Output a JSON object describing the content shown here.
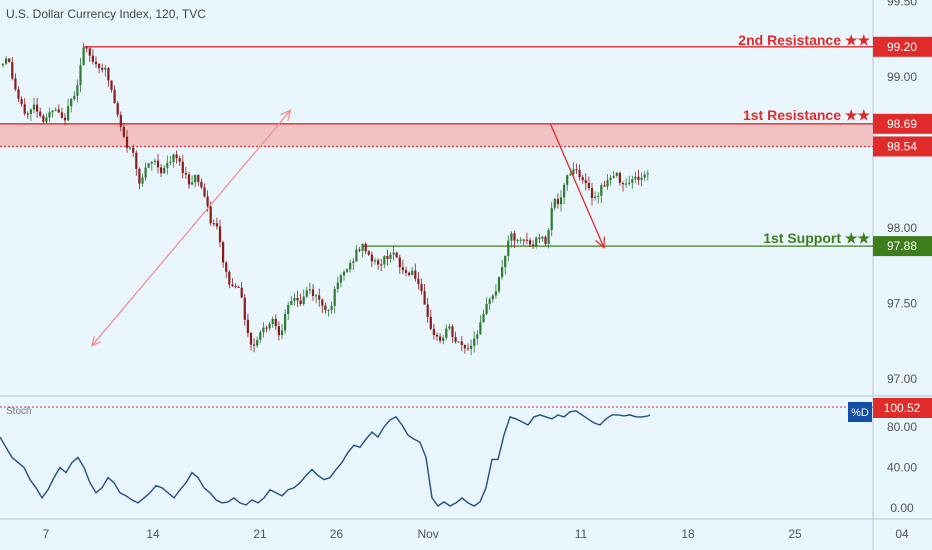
{
  "header": {
    "symbol_title": "U.S. Dollar Currency Index, 120, TVC"
  },
  "colors": {
    "background": "#eaf6fd",
    "candle_up": "#2d7a30",
    "candle_down": "#8b1c1c",
    "resistance": "#e02b2b",
    "resistance_zone": "#f2b8b8",
    "support": "#3d7d1c",
    "stoch_line": "#1e4f8a",
    "axis_text": "#555555",
    "stoch_badge": "#1450a8"
  },
  "levels": {
    "second_resistance": {
      "label": "2nd Resistance ★★",
      "price": 99.2,
      "price_text": "99.20"
    },
    "first_resistance": {
      "label": "1st Resistance ★★",
      "price": 98.69,
      "price_text": "98.69"
    },
    "zone_lower": {
      "price": 98.54,
      "price_text": "98.54"
    },
    "first_support": {
      "label": "1st Support ★★",
      "price": 97.88,
      "price_text": "97.88"
    }
  },
  "stoch": {
    "title": "Stoch",
    "badge": "%D",
    "upper_level_text": "100.52"
  },
  "chart_data": [
    {
      "type": "candlestick",
      "x_tick_labels": [
        "7",
        "14",
        "21",
        "26",
        "Nov",
        "11",
        "18",
        "25",
        "04"
      ],
      "y_tick_labels": [
        "99.50",
        "99.00",
        "98.00",
        "97.50",
        "97.00"
      ],
      "ylim": [
        96.91,
        99.55
      ],
      "close_path": [
        [
          0,
          99.05
        ],
        [
          7,
          99.15
        ],
        [
          14,
          98.95
        ],
        [
          21,
          98.8
        ],
        [
          28,
          98.75
        ],
        [
          35,
          98.82
        ],
        [
          42,
          98.72
        ],
        [
          49,
          98.75
        ],
        [
          56,
          98.78
        ],
        [
          63,
          98.7
        ],
        [
          70,
          98.82
        ],
        [
          77,
          98.95
        ],
        [
          84,
          99.2
        ],
        [
          91,
          99.12
        ],
        [
          98,
          99.08
        ],
        [
          105,
          99.05
        ],
        [
          112,
          98.9
        ],
        [
          119,
          98.7
        ],
        [
          126,
          98.55
        ],
        [
          133,
          98.5
        ],
        [
          140,
          98.3
        ],
        [
          147,
          98.4
        ],
        [
          154,
          98.45
        ],
        [
          161,
          98.38
        ],
        [
          168,
          98.42
        ],
        [
          175,
          98.48
        ],
        [
          182,
          98.4
        ],
        [
          189,
          98.3
        ],
        [
          196,
          98.35
        ],
        [
          203,
          98.25
        ],
        [
          210,
          98.05
        ],
        [
          217,
          98.0
        ],
        [
          224,
          97.75
        ],
        [
          231,
          97.6
        ],
        [
          238,
          97.65
        ],
        [
          245,
          97.4
        ],
        [
          252,
          97.2
        ],
        [
          259,
          97.3
        ],
        [
          266,
          97.35
        ],
        [
          273,
          97.4
        ],
        [
          280,
          97.3
        ],
        [
          287,
          97.45
        ],
        [
          294,
          97.55
        ],
        [
          301,
          97.5
        ],
        [
          308,
          97.6
        ],
        [
          315,
          97.55
        ],
        [
          322,
          97.5
        ],
        [
          329,
          97.45
        ],
        [
          336,
          97.6
        ],
        [
          343,
          97.7
        ],
        [
          350,
          97.75
        ],
        [
          357,
          97.85
        ],
        [
          364,
          97.88
        ],
        [
          371,
          97.8
        ],
        [
          378,
          97.75
        ],
        [
          385,
          97.8
        ],
        [
          392,
          97.85
        ],
        [
          399,
          97.75
        ],
        [
          406,
          97.7
        ],
        [
          413,
          97.72
        ],
        [
          420,
          97.6
        ],
        [
          427,
          97.4
        ],
        [
          434,
          97.3
        ],
        [
          441,
          97.25
        ],
        [
          448,
          97.35
        ],
        [
          455,
          97.25
        ],
        [
          462,
          97.22
        ],
        [
          469,
          97.2
        ],
        [
          476,
          97.3
        ],
        [
          483,
          97.4
        ],
        [
          490,
          97.55
        ],
        [
          497,
          97.6
        ],
        [
          504,
          97.8
        ],
        [
          511,
          97.95
        ],
        [
          518,
          97.9
        ],
        [
          525,
          97.92
        ],
        [
          532,
          97.88
        ],
        [
          539,
          97.95
        ],
        [
          546,
          97.9
        ],
        [
          553,
          98.2
        ],
        [
          560,
          98.15
        ],
        [
          567,
          98.35
        ],
        [
          574,
          98.4
        ],
        [
          581,
          98.35
        ],
        [
          588,
          98.25
        ],
        [
          595,
          98.2
        ],
        [
          602,
          98.28
        ],
        [
          609,
          98.32
        ],
        [
          616,
          98.35
        ],
        [
          623,
          98.3
        ],
        [
          630,
          98.32
        ],
        [
          637,
          98.33
        ],
        [
          644,
          98.34
        ],
        [
          650,
          98.37
        ]
      ],
      "annotations": [
        {
          "type": "arrow",
          "from": [
            10,
            97.22
          ],
          "to": [
            23,
            98.78
          ]
        },
        {
          "type": "arrow",
          "from": [
            40,
            98.69
          ],
          "to": [
            43.5,
            97.87
          ]
        }
      ]
    },
    {
      "type": "line",
      "name": "%D",
      "y_tick_labels": [
        "80.00",
        "40.00",
        "0.00"
      ],
      "ylim": [
        -8,
        110
      ],
      "points": [
        [
          0,
          70
        ],
        [
          6,
          60
        ],
        [
          12,
          50
        ],
        [
          18,
          45
        ],
        [
          24,
          40
        ],
        [
          30,
          28
        ],
        [
          36,
          20
        ],
        [
          42,
          10
        ],
        [
          48,
          18
        ],
        [
          54,
          30
        ],
        [
          60,
          40
        ],
        [
          66,
          35
        ],
        [
          72,
          45
        ],
        [
          78,
          50
        ],
        [
          84,
          40
        ],
        [
          90,
          25
        ],
        [
          96,
          15
        ],
        [
          102,
          20
        ],
        [
          108,
          30
        ],
        [
          114,
          25
        ],
        [
          120,
          15
        ],
        [
          126,
          12
        ],
        [
          132,
          8
        ],
        [
          138,
          5
        ],
        [
          144,
          10
        ],
        [
          150,
          15
        ],
        [
          156,
          22
        ],
        [
          162,
          20
        ],
        [
          168,
          15
        ],
        [
          174,
          10
        ],
        [
          180,
          18
        ],
        [
          186,
          25
        ],
        [
          192,
          35
        ],
        [
          198,
          30
        ],
        [
          204,
          20
        ],
        [
          210,
          15
        ],
        [
          216,
          8
        ],
        [
          222,
          5
        ],
        [
          228,
          6
        ],
        [
          234,
          10
        ],
        [
          240,
          5
        ],
        [
          246,
          3
        ],
        [
          252,
          8
        ],
        [
          258,
          5
        ],
        [
          264,
          10
        ],
        [
          270,
          18
        ],
        [
          276,
          15
        ],
        [
          282,
          12
        ],
        [
          288,
          18
        ],
        [
          294,
          20
        ],
        [
          300,
          25
        ],
        [
          306,
          32
        ],
        [
          312,
          38
        ],
        [
          318,
          32
        ],
        [
          324,
          28
        ],
        [
          330,
          30
        ],
        [
          336,
          38
        ],
        [
          342,
          45
        ],
        [
          348,
          55
        ],
        [
          354,
          62
        ],
        [
          360,
          60
        ],
        [
          366,
          68
        ],
        [
          372,
          75
        ],
        [
          378,
          70
        ],
        [
          384,
          80
        ],
        [
          390,
          87
        ],
        [
          396,
          90
        ],
        [
          402,
          82
        ],
        [
          408,
          72
        ],
        [
          414,
          68
        ],
        [
          420,
          65
        ],
        [
          426,
          50
        ],
        [
          432,
          10
        ],
        [
          438,
          2
        ],
        [
          444,
          6
        ],
        [
          450,
          2
        ],
        [
          456,
          5
        ],
        [
          462,
          10
        ],
        [
          468,
          5
        ],
        [
          474,
          2
        ],
        [
          480,
          6
        ],
        [
          486,
          20
        ],
        [
          492,
          48
        ],
        [
          498,
          48
        ],
        [
          504,
          72
        ],
        [
          510,
          90
        ],
        [
          516,
          88
        ],
        [
          522,
          85
        ],
        [
          528,
          82
        ],
        [
          534,
          90
        ],
        [
          540,
          92
        ],
        [
          546,
          90
        ],
        [
          552,
          88
        ],
        [
          558,
          92
        ],
        [
          564,
          90
        ],
        [
          570,
          95
        ],
        [
          576,
          96
        ],
        [
          582,
          92
        ],
        [
          588,
          88
        ],
        [
          594,
          84
        ],
        [
          600,
          82
        ],
        [
          606,
          88
        ],
        [
          612,
          92
        ],
        [
          618,
          92
        ],
        [
          624,
          91
        ],
        [
          630,
          92
        ],
        [
          636,
          90
        ],
        [
          642,
          90
        ],
        [
          648,
          91
        ],
        [
          650,
          92
        ]
      ]
    }
  ]
}
